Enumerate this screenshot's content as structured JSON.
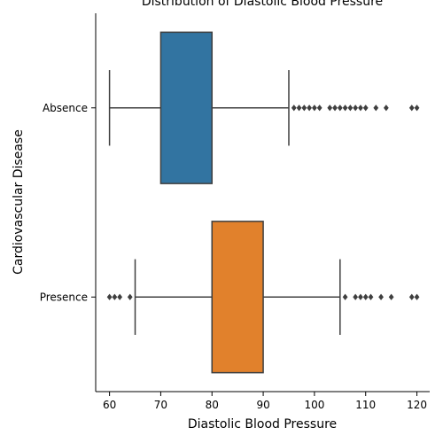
{
  "chart_data": {
    "type": "box",
    "title": "Distribution of Diastolic Blood Pressure",
    "xlabel": "Diastolic Blood Pressure",
    "ylabel": "Cardiovascular Disease",
    "orientation": "horizontal",
    "xlim": [
      57.3,
      122.5
    ],
    "xticks": [
      "60",
      "70",
      "80",
      "90",
      "100",
      "110",
      "120"
    ],
    "xtick_values": [
      60,
      70,
      80,
      90,
      100,
      110,
      120
    ],
    "grid": false,
    "categories": [
      "Absence",
      "Presence"
    ],
    "series": [
      {
        "category": "Absence",
        "color": "#3274a1",
        "whisker_low": 60,
        "q1": 70,
        "median": 80,
        "q3": 80,
        "whisker_high": 95,
        "outliers": [
          96,
          97,
          98,
          99,
          100,
          101,
          103,
          104,
          105,
          106,
          107,
          108,
          109,
          110,
          112,
          114,
          119,
          120
        ]
      },
      {
        "category": "Presence",
        "color": "#e1812c",
        "whisker_low": 65,
        "q1": 80,
        "median": 80,
        "q3": 90,
        "whisker_high": 105,
        "outliers": [
          60,
          61,
          62,
          64,
          106,
          108,
          109,
          110,
          111,
          113,
          115,
          119,
          120
        ]
      }
    ]
  }
}
